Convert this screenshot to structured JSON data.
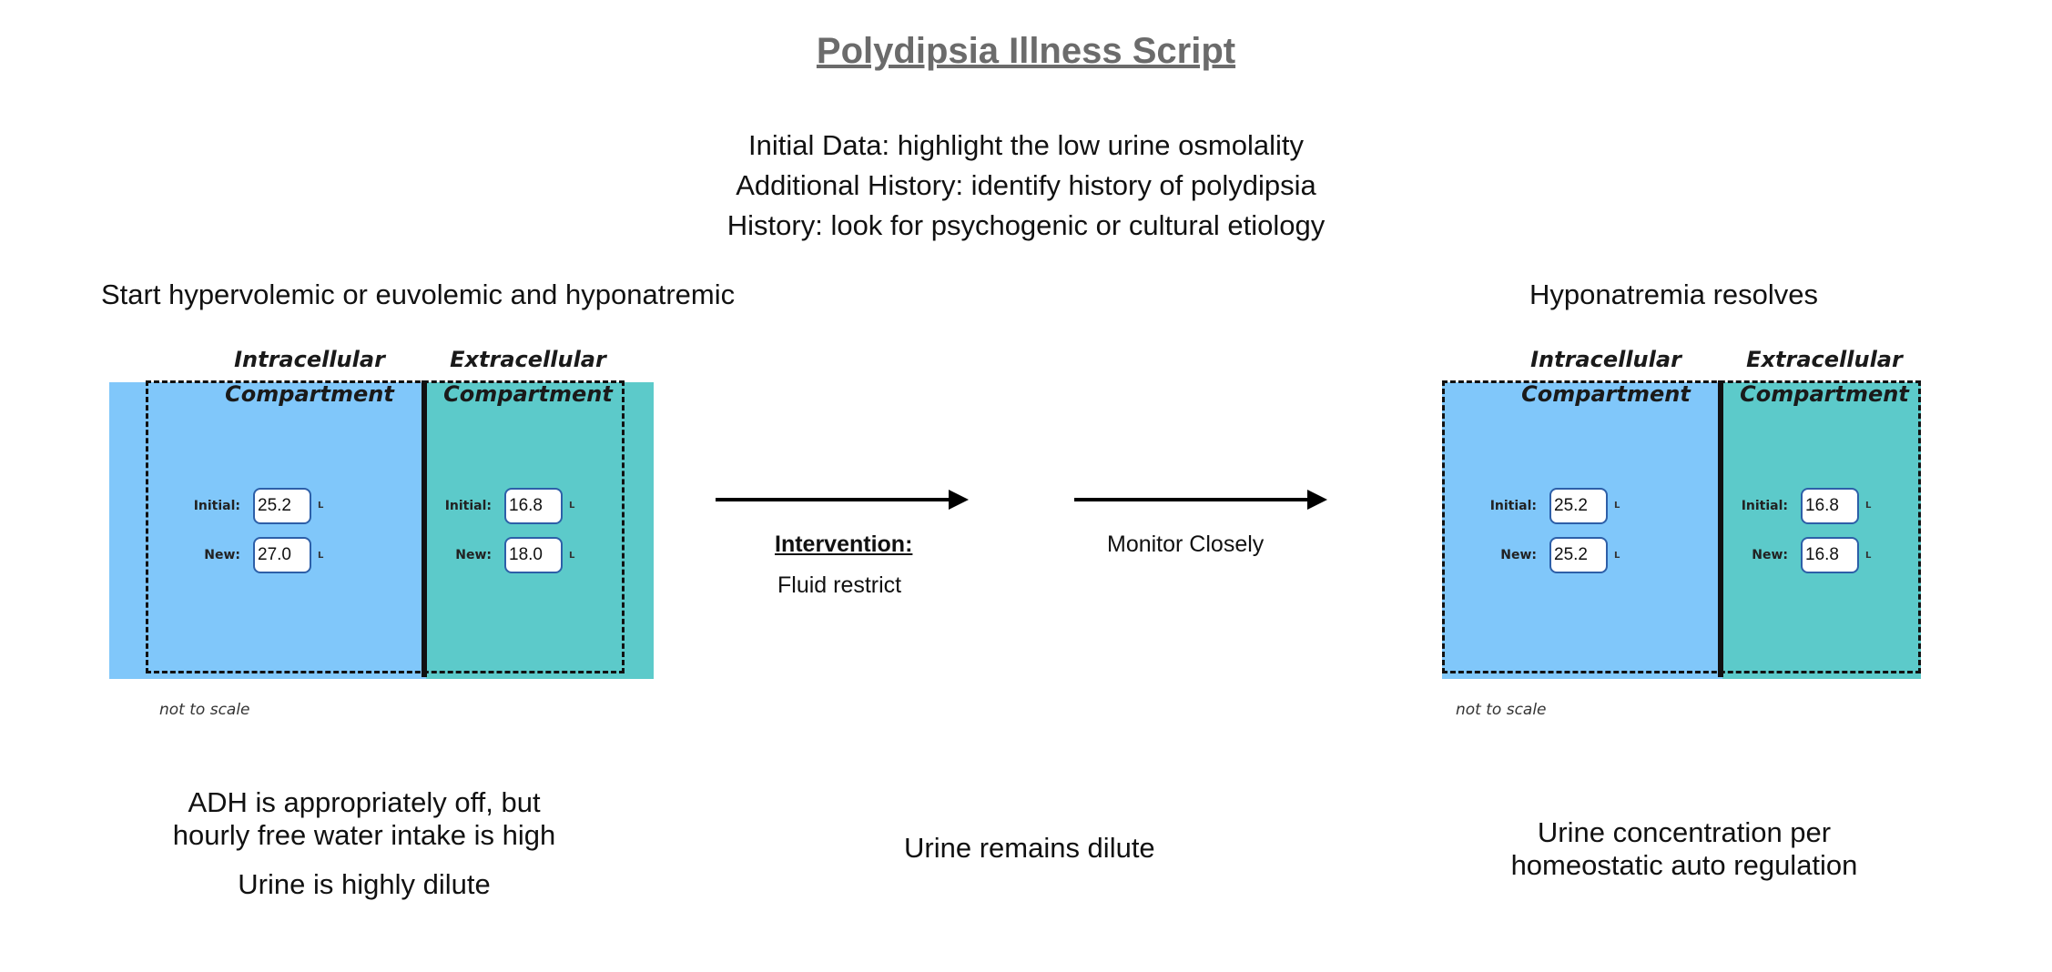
{
  "title": "Polydipsia Illness Script",
  "notes": [
    "Initial Data: highlight the low urine osmolality",
    "Additional History: identify history of polydipsia",
    "History: look for psychogenic or cultural etiology"
  ],
  "left_panel": {
    "heading": "Start hypervolemic or euvolemic and hyponatremic",
    "intracellular": {
      "label_top": "Intracellular",
      "label_bottom": "Compartment",
      "initial_label": "Initial:",
      "initial": "25.2",
      "new_label": "New:",
      "new": "27.0",
      "unit": "L"
    },
    "extracellular": {
      "label_top": "Extracellular",
      "label_bottom": "Compartment",
      "initial_label": "Initial:",
      "initial": "16.8",
      "new_label": "New:",
      "new": "18.0",
      "unit": "L"
    },
    "scale_note": "not to scale",
    "caption_line1": "ADH is appropriately off, but",
    "caption_line2": "hourly free water intake is high",
    "caption_line3": "Urine is highly dilute"
  },
  "middle": {
    "intervention_label": "Intervention:",
    "intervention_text": "Fluid restrict",
    "monitor_text": "Monitor Closely",
    "caption": "Urine remains dilute"
  },
  "right_panel": {
    "heading": "Hyponatremia resolves",
    "intracellular": {
      "label_top": "Intracellular",
      "label_bottom": "Compartment",
      "initial_label": "Initial:",
      "initial": "25.2",
      "new_label": "New:",
      "new": "25.2",
      "unit": "L"
    },
    "extracellular": {
      "label_top": "Extracellular",
      "label_bottom": "Compartment",
      "initial_label": "Initial:",
      "initial": "16.8",
      "new_label": "New:",
      "new": "16.8",
      "unit": "L"
    },
    "scale_note": "not to scale",
    "caption_line1": "Urine concentration per",
    "caption_line2": "homeostatic auto regulation"
  },
  "colors": {
    "intracellular": "#80c7fa",
    "extracellular": "#5ccaca",
    "title": "#6b6b6b",
    "field_border": "#2d5fa8"
  }
}
